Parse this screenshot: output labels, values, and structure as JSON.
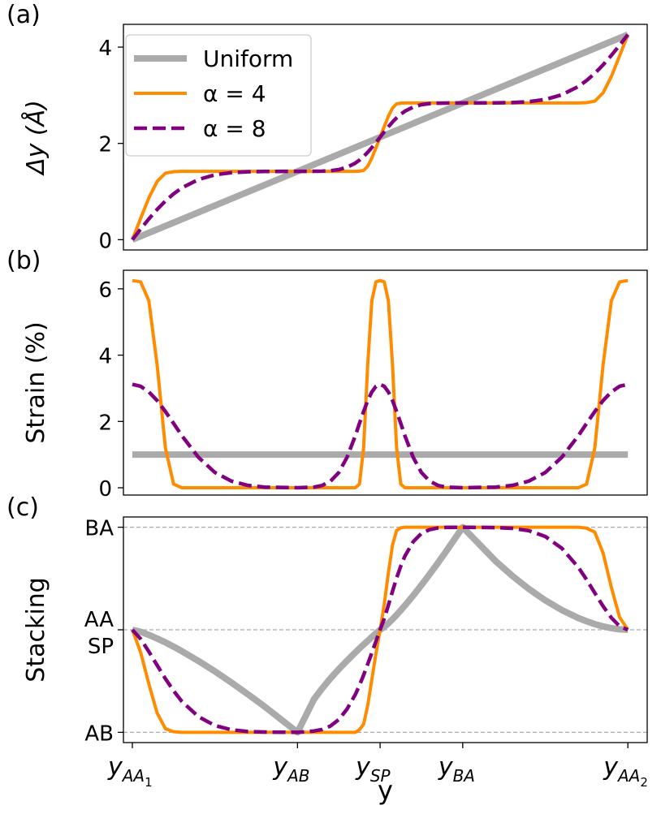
{
  "chart_data": [
    {
      "type": "line",
      "panel_label": "(a)",
      "ylabel": "Δy (Å)",
      "xlim": [
        -0.018,
        1.039
      ],
      "ylim": [
        -0.213,
        4.473
      ],
      "yticks": [
        0,
        2,
        4
      ],
      "legend": "upper left",
      "x": [
        0,
        0.0167,
        0.0333,
        0.05,
        0.0667,
        0.0833,
        0.1,
        0.1333,
        0.1667,
        0.2,
        0.2333,
        0.2667,
        0.3333,
        0.3667,
        0.3833,
        0.4,
        0.4167,
        0.4333,
        0.45,
        0.4583,
        0.4667,
        0.475,
        0.4833,
        0.4917,
        0.5,
        0.5083,
        0.5167,
        0.525,
        0.5333,
        0.5417,
        0.55,
        0.5667,
        0.5833,
        0.6,
        0.6167,
        0.6333,
        0.6667,
        0.7333,
        0.7667,
        0.8,
        0.8333,
        0.8667,
        0.9,
        0.9167,
        0.9333,
        0.95,
        0.9667,
        0.9833,
        1
      ],
      "series": [
        {
          "name": "Uniform",
          "color": "#aaaaaa",
          "width": 8,
          "dash": false,
          "x": [
            0,
            1
          ],
          "values": [
            0,
            4.26
          ]
        },
        {
          "name": "α = 4",
          "color": "#ff8c00",
          "width": 4,
          "dash": false,
          "values": [
            0,
            0.442,
            0.869,
            1.21,
            1.382,
            1.413,
            1.42,
            1.42,
            1.42,
            1.42,
            1.42,
            1.42,
            1.42,
            1.42,
            1.42,
            1.42,
            1.42,
            1.42,
            1.42,
            1.424,
            1.439,
            1.525,
            1.695,
            1.909,
            2.13,
            2.351,
            2.565,
            2.735,
            2.821,
            2.836,
            2.84,
            2.84,
            2.84,
            2.84,
            2.84,
            2.84,
            2.84,
            2.84,
            2.84,
            2.84,
            2.84,
            2.84,
            2.84,
            2.847,
            2.878,
            3.05,
            3.391,
            3.818,
            4.26
          ]
        },
        {
          "name": "α = 8",
          "color": "#800080",
          "width": 4.5,
          "dash": true,
          "values": [
            0,
            0.22,
            0.432,
            0.628,
            0.804,
            0.954,
            1.078,
            1.25,
            1.348,
            1.393,
            1.411,
            1.417,
            1.42,
            1.421,
            1.424,
            1.434,
            1.456,
            1.505,
            1.591,
            1.653,
            1.728,
            1.816,
            1.914,
            2.02,
            2.13,
            2.24,
            2.346,
            2.444,
            2.532,
            2.607,
            2.669,
            2.755,
            2.804,
            2.827,
            2.836,
            2.839,
            2.84,
            2.843,
            2.848,
            2.867,
            2.912,
            3.01,
            3.182,
            3.306,
            3.456,
            3.632,
            3.828,
            4.04,
            4.26
          ]
        }
      ]
    },
    {
      "type": "line",
      "panel_label": "(b)",
      "ylabel": "Strain (%)",
      "xlim": [
        -0.018,
        1.039
      ],
      "ylim": [
        -0.22,
        6.56
      ],
      "yticks": [
        0,
        2,
        4,
        6
      ],
      "x": [
        0,
        0.0167,
        0.0333,
        0.05,
        0.0667,
        0.0833,
        0.1,
        0.1333,
        0.1667,
        0.2,
        0.2333,
        0.2667,
        0.3333,
        0.3667,
        0.3833,
        0.4,
        0.4167,
        0.4333,
        0.45,
        0.4583,
        0.4667,
        0.475,
        0.4833,
        0.4917,
        0.5,
        0.5083,
        0.5167,
        0.525,
        0.5333,
        0.5417,
        0.55,
        0.5667,
        0.5833,
        0.6,
        0.6167,
        0.6333,
        0.6667,
        0.7333,
        0.7667,
        0.8,
        0.8333,
        0.8667,
        0.9,
        0.9167,
        0.9333,
        0.95,
        0.9667,
        0.9833,
        1
      ],
      "series": [
        {
          "name": "Uniform",
          "color": "#aaaaaa",
          "width": 8,
          "dash": false,
          "x": [
            0,
            1
          ],
          "values": [
            1,
            1
          ]
        },
        {
          "name": "α = 4",
          "color": "#ff8c00",
          "width": 4,
          "dash": false,
          "values": [
            6.25,
            6.21,
            5.64,
            3.71,
            1.2,
            0.11,
            0,
            0,
            0,
            0,
            0,
            0,
            0,
            0,
            0,
            0,
            0,
            0,
            0,
            0.11,
            1.2,
            3.71,
            5.64,
            6.21,
            6.25,
            6.21,
            5.64,
            3.71,
            1.2,
            0.11,
            0,
            0,
            0,
            0,
            0,
            0,
            0,
            0,
            0,
            0,
            0,
            0,
            0,
            0.11,
            1.2,
            3.71,
            5.64,
            6.21,
            6.25
          ]
        },
        {
          "name": "α = 8",
          "color": "#800080",
          "width": 4.5,
          "dash": true,
          "values": [
            3.12,
            3.06,
            2.89,
            2.63,
            2.3,
            1.94,
            1.57,
            0.92,
            0.46,
            0.2,
            0.07,
            0.02,
            0,
            0.02,
            0.07,
            0.2,
            0.46,
            0.92,
            1.57,
            1.94,
            2.3,
            2.63,
            2.89,
            3.06,
            3.12,
            3.06,
            2.89,
            2.63,
            2.3,
            1.94,
            1.57,
            0.92,
            0.46,
            0.2,
            0.07,
            0.02,
            0,
            0.02,
            0.07,
            0.2,
            0.46,
            0.92,
            1.57,
            1.94,
            2.3,
            2.63,
            2.89,
            3.06,
            3.12
          ]
        }
      ]
    },
    {
      "type": "line",
      "panel_label": "(c)",
      "ylabel": "Stacking",
      "xlabel": "y",
      "xlim": [
        -0.018,
        1.039
      ],
      "ylim": [
        -0.1,
        2.1
      ],
      "grid": true,
      "yticks": [
        {
          "value": 0,
          "label": "AB"
        },
        {
          "value": 1,
          "label": [
            "AA",
            "SP"
          ]
        },
        {
          "value": 2,
          "label": "BA"
        }
      ],
      "xticks": [
        {
          "value": 0,
          "label": [
            "y",
            "AA",
            "1"
          ]
        },
        {
          "value": 0.3333,
          "label": [
            "y",
            "AB"
          ]
        },
        {
          "value": 0.5,
          "label": [
            "y",
            "SP"
          ]
        },
        {
          "value": 0.6667,
          "label": [
            "y",
            "BA"
          ]
        },
        {
          "value": 1,
          "label": [
            "y",
            "AA",
            "2"
          ]
        }
      ],
      "x": [
        0,
        0.0167,
        0.0333,
        0.05,
        0.0667,
        0.0833,
        0.1,
        0.1333,
        0.1667,
        0.2,
        0.2333,
        0.2667,
        0.3333,
        0.3667,
        0.3833,
        0.4,
        0.4167,
        0.4333,
        0.45,
        0.4583,
        0.4667,
        0.475,
        0.4833,
        0.4917,
        0.5,
        0.5083,
        0.5167,
        0.525,
        0.5333,
        0.5417,
        0.55,
        0.5667,
        0.5833,
        0.6,
        0.6167,
        0.6333,
        0.6667,
        0.7333,
        0.7667,
        0.8,
        0.8333,
        0.8667,
        0.9,
        0.9167,
        0.9333,
        0.95,
        0.9667,
        0.9833,
        1
      ],
      "series": [
        {
          "name": "Uniform",
          "color": "#aaaaaa",
          "width": 8,
          "dash": false,
          "values": [
            1,
            0.98,
            0.95,
            0.915,
            0.877,
            0.835,
            0.791,
            0.696,
            0.594,
            0.485,
            0.371,
            0.252,
            0,
            0.324,
            0.43,
            0.527,
            0.616,
            0.699,
            0.779,
            0.818,
            0.855,
            0.892,
            0.929,
            0.965,
            1,
            1.028,
            1.063,
            1.103,
            1.145,
            1.19,
            1.236,
            1.333,
            1.435,
            1.542,
            1.652,
            1.765,
            2,
            1.669,
            1.526,
            1.399,
            1.287,
            1.192,
            1.115,
            1.083,
            1.055,
            1.033,
            1.016,
            1.005,
            1
          ]
        },
        {
          "name": "α = 4",
          "color": "#ff8c00",
          "width": 4,
          "dash": false,
          "values": [
            1,
            0.781,
            0.472,
            0.188,
            0.035,
            0.006,
            0,
            0,
            0,
            0,
            0,
            0,
            0,
            0,
            0,
            0,
            0,
            0,
            0,
            0.025,
            0.08,
            0.262,
            0.515,
            0.77,
            1,
            1.246,
            1.555,
            1.825,
            1.968,
            1.994,
            2,
            2,
            2,
            2,
            2,
            2,
            2,
            2,
            2,
            2,
            2,
            2,
            2,
            1.991,
            1.952,
            1.749,
            1.413,
            1.122,
            1
          ]
        },
        {
          "name": "α = 8",
          "color": "#800080",
          "width": 4.5,
          "dash": true,
          "values": [
            1,
            0.911,
            0.787,
            0.654,
            0.523,
            0.404,
            0.301,
            0.153,
            0.066,
            0.025,
            0.008,
            0.003,
            0,
            0.013,
            0.028,
            0.062,
            0.125,
            0.227,
            0.369,
            0.458,
            0.558,
            0.665,
            0.776,
            0.889,
            1,
            1.107,
            1.24,
            1.375,
            1.505,
            1.621,
            1.718,
            1.858,
            1.939,
            1.977,
            1.993,
            1.998,
            2,
            1.996,
            1.989,
            1.966,
            1.91,
            1.795,
            1.609,
            1.489,
            1.359,
            1.23,
            1.117,
            1.035,
            1
          ]
        }
      ]
    }
  ]
}
